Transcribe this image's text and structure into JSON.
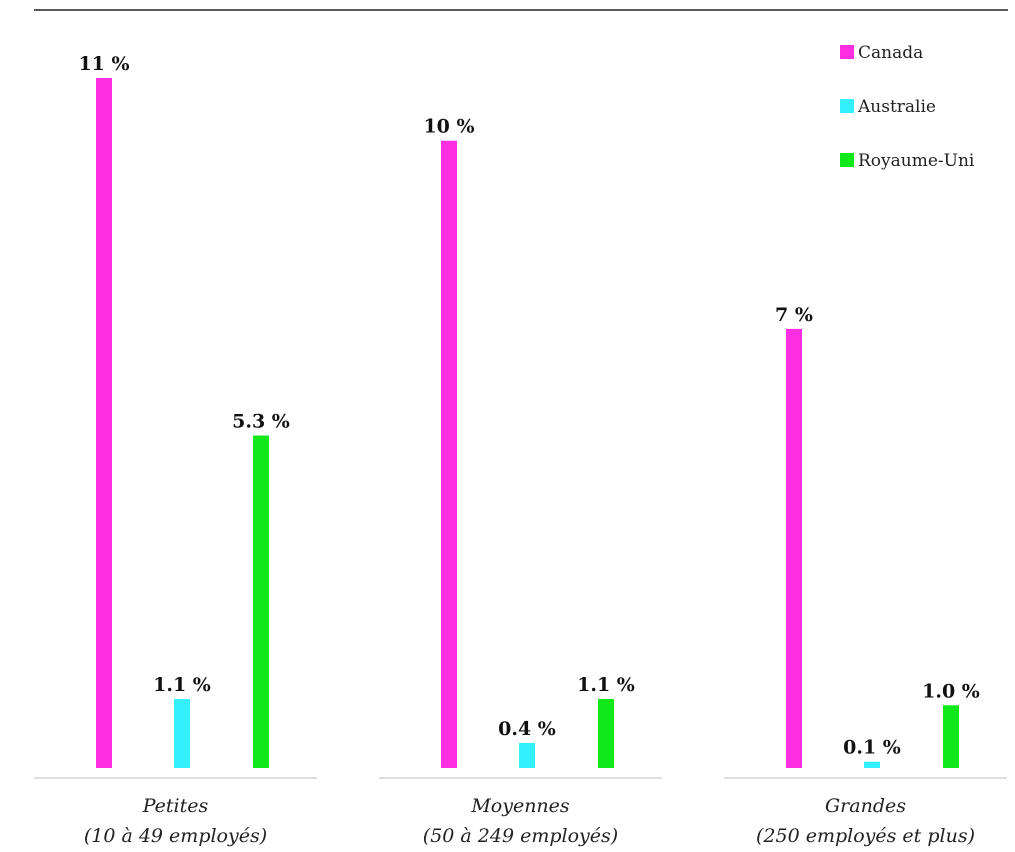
{
  "chart_data": {
    "type": "bar",
    "categories": [
      [
        "Petites",
        "(10 à 49 employés)"
      ],
      [
        "Moyennes",
        "(50 à 249 employés)"
      ],
      [
        "Grandes",
        "(250 employés et plus)"
      ]
    ],
    "series": [
      {
        "name": "Canada",
        "color": "#ff2ee0",
        "values": [
          11,
          10,
          7
        ],
        "labels": [
          "11 %",
          "10 %",
          "7 %"
        ]
      },
      {
        "name": "Australie",
        "color": "#33f0ff",
        "values": [
          1.1,
          0.4,
          0.1
        ],
        "labels": [
          "1.1 %",
          "0.4 %",
          "0.1 %"
        ]
      },
      {
        "name": "Royaume-Uni",
        "color": "#11e81a",
        "values": [
          5.3,
          1.1,
          1.0
        ],
        "labels": [
          "5.3 %",
          "1.1 %",
          "1.0 %"
        ]
      }
    ],
    "ylim": [
      0,
      11
    ],
    "grid": false,
    "legend_position": "top-right"
  }
}
